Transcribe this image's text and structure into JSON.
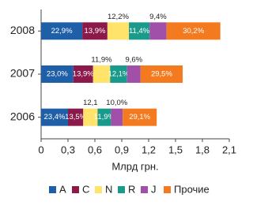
{
  "chart_data": {
    "type": "stacked-bar-horizontal",
    "categories": [
      "2008",
      "2007",
      "2006"
    ],
    "series": [
      {
        "name": "A",
        "color": "#1f5fa8",
        "label_position": "inside",
        "values": [
          0.46,
          0.36,
          0.3
        ],
        "value_labels": [
          "22,9%",
          "23,0%",
          "23,4%"
        ],
        "shares": [
          22.9,
          23.0,
          23.4
        ]
      },
      {
        "name": "C",
        "color": "#8b1a4a",
        "label_position": "inside",
        "values": [
          0.28,
          0.22,
          0.17
        ],
        "value_labels": [
          "13,9%",
          "13,9%",
          "13,5%"
        ],
        "shares": [
          13.9,
          13.9,
          13.5
        ]
      },
      {
        "name": "N",
        "color": "#ffe36b",
        "label_position": "above",
        "values": [
          0.24,
          0.19,
          0.16
        ],
        "value_labels": [
          "12,2%",
          "11,9%",
          "12,1"
        ],
        "shares": [
          12.2,
          11.9,
          12.1
        ]
      },
      {
        "name": "R",
        "color": "#1a9a8a",
        "label_position": "inside",
        "values": [
          0.23,
          0.19,
          0.15
        ],
        "value_labels": [
          "11,4%",
          "12,1%",
          "11,9%"
        ],
        "shares": [
          11.4,
          12.1,
          11.9
        ]
      },
      {
        "name": "J",
        "color": "#a050a8",
        "label_position": "above",
        "values": [
          0.19,
          0.15,
          0.13
        ],
        "value_labels": [
          "9,4%",
          "9,6%",
          "10,0%"
        ],
        "shares": [
          9.4,
          9.6,
          10.0
        ]
      },
      {
        "name": "Прочие",
        "color": "#f47a20",
        "label_position": "inside",
        "values": [
          0.6,
          0.47,
          0.38
        ],
        "value_labels": [
          "30,2%",
          "29,5%",
          "29,1%"
        ],
        "shares": [
          30.2,
          29.5,
          29.1
        ]
      }
    ],
    "xlabel": "Млрд грн.",
    "xlim": [
      0,
      2.1
    ],
    "xticks": [
      0,
      {
        "value": 0.3,
        "label": "0,3"
      },
      {
        "value": 0.6,
        "label": "0,6"
      },
      {
        "value": 0.9,
        "label": "0,9"
      },
      {
        "value": 1.2,
        "label": "1,2"
      },
      {
        "value": 1.5,
        "label": "1,5"
      },
      {
        "value": 1.8,
        "label": "1,8"
      },
      {
        "value": 2.1,
        "label": "2,1"
      }
    ],
    "legend": "bottom"
  }
}
